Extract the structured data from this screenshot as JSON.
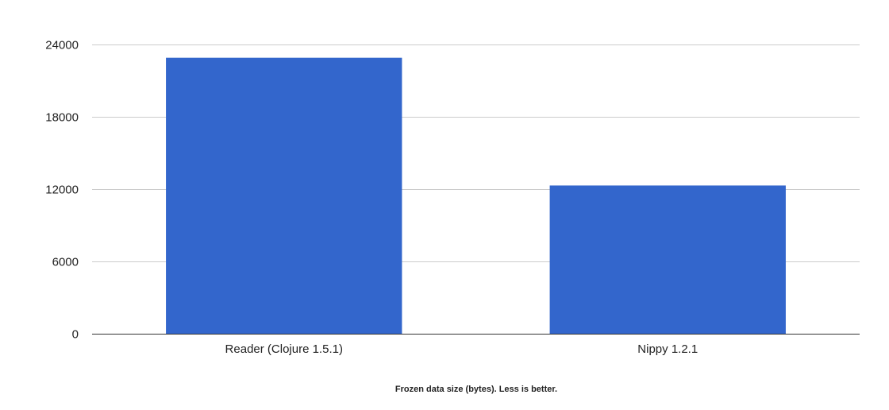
{
  "chart_data": {
    "type": "bar",
    "categories": [
      "Reader (Clojure 1.5.1)",
      "Nippy 1.2.1"
    ],
    "series": [
      {
        "values": [
          22900,
          12300
        ]
      }
    ],
    "title": "",
    "xlabel": "Frozen data size (bytes). Less is better.",
    "ylabel": "",
    "ylim": [
      0,
      24000
    ],
    "yticks": [
      0,
      6000,
      12000,
      18000,
      24000
    ],
    "grid": true,
    "legend": "none",
    "colors": {
      "bar": "#3366cc",
      "grid": "#cccccc",
      "baseline": "#333333"
    }
  }
}
